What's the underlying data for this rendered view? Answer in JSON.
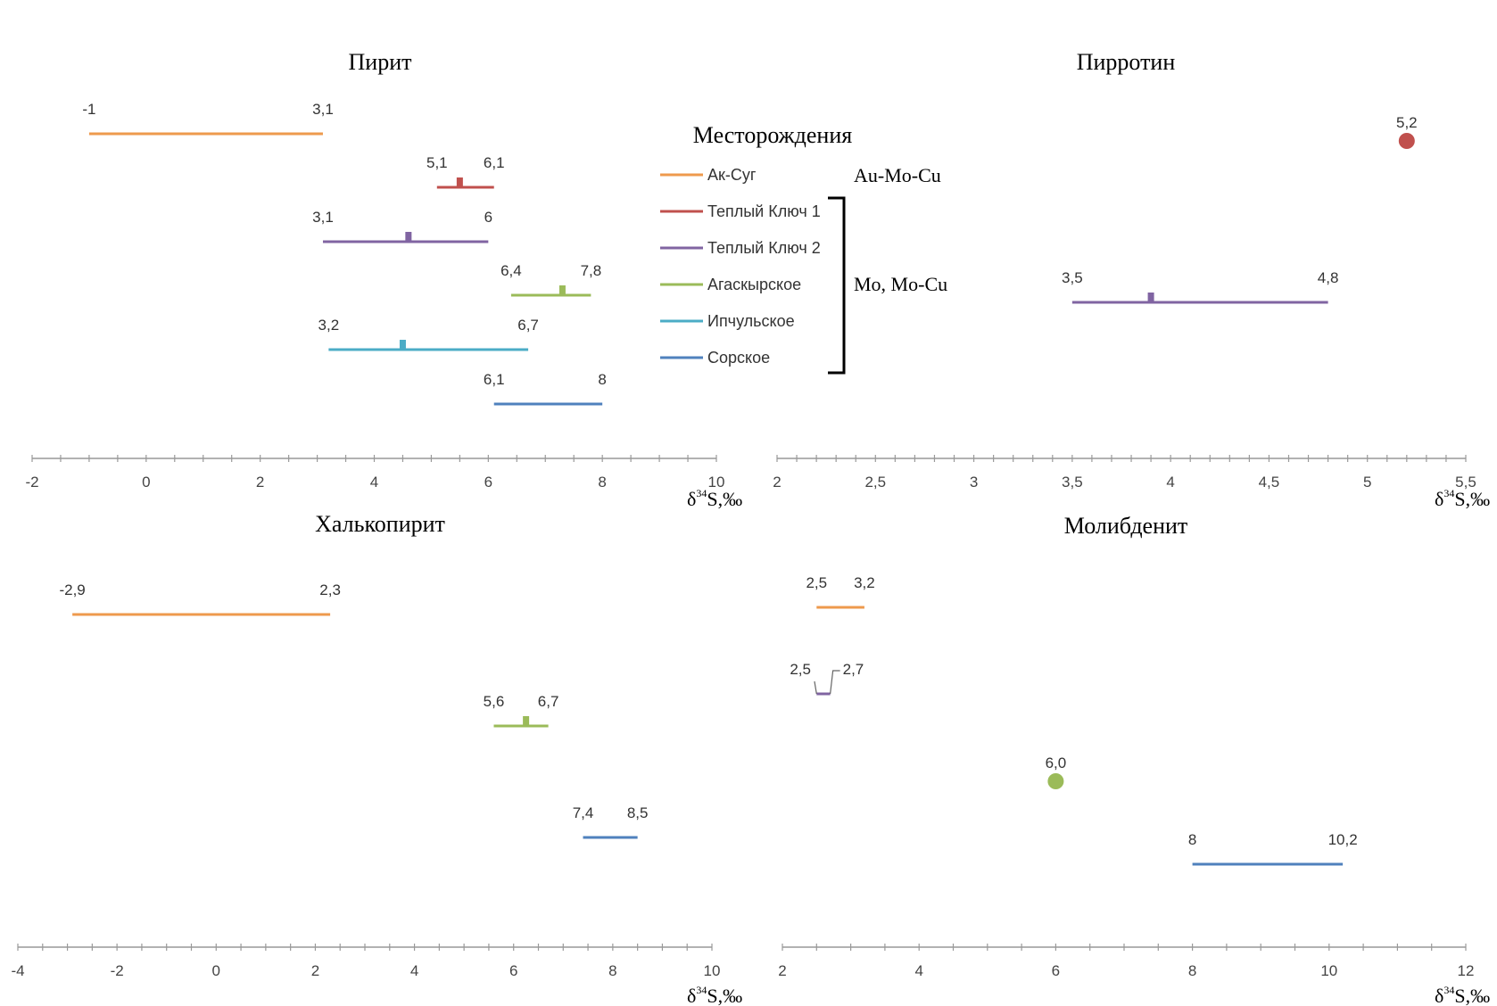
{
  "colors": {
    "ak_sug": "#ee9a4d",
    "teply1": "#c0504d",
    "teply2": "#8064a2",
    "agask": "#9bbb59",
    "ipchul": "#4bacc6",
    "sorsk": "#4f81bd",
    "axis": "#999999"
  },
  "legend": {
    "title": "Месторождения",
    "items": [
      {
        "label": "Ак-Суг",
        "color": "#ee9a4d"
      },
      {
        "label": "Теплый Ключ 1",
        "color": "#c0504d"
      },
      {
        "label": "Теплый Ключ 2",
        "color": "#8064a2"
      },
      {
        "label": "Агаскырское",
        "color": "#9bbb59"
      },
      {
        "label": "Ипчульское",
        "color": "#4bacc6"
      },
      {
        "label": "Сорское",
        "color": "#4f81bd"
      }
    ],
    "group1": "Au-Mo-Cu",
    "group2": "Mo, Mo-Cu"
  },
  "chart_data": [
    {
      "type": "range",
      "title": "Пирит",
      "xlabel": "δ34S,‰",
      "xlabel_prefix": "δ",
      "xlabel_sup": "34",
      "xlabel_suffix": "S,‰",
      "xlim": [
        -2,
        10
      ],
      "ticks": [
        "-2",
        "0",
        "2",
        "4",
        "6",
        "8",
        "10"
      ],
      "tick_values": [
        -2,
        0,
        2,
        4,
        6,
        8,
        10
      ],
      "minor_step": 0.5,
      "series": [
        {
          "name": "Ак-Суг",
          "color": "#ee9a4d",
          "min": -1,
          "max": 3.1,
          "min_label": "-1",
          "max_label": "3,1"
        },
        {
          "name": "Теплый Ключ 1",
          "color": "#c0504d",
          "min": 5.1,
          "max": 6.1,
          "mark": 5.5,
          "min_label": "5,1",
          "max_label": "6,1"
        },
        {
          "name": "Теплый Ключ 2",
          "color": "#8064a2",
          "min": 3.1,
          "max": 6,
          "mark": 4.6,
          "min_label": "3,1",
          "max_label": "6"
        },
        {
          "name": "Агаскырское",
          "color": "#9bbb59",
          "min": 6.4,
          "max": 7.8,
          "mark": 7.3,
          "min_label": "6,4",
          "max_label": "7,8"
        },
        {
          "name": "Ипчульское",
          "color": "#4bacc6",
          "min": 3.2,
          "max": 6.7,
          "mark": 4.5,
          "min_label": "3,2",
          "max_label": "6,7"
        },
        {
          "name": "Сорское",
          "color": "#4f81bd",
          "min": 6.1,
          "max": 8,
          "min_label": "6,1",
          "max_label": "8"
        }
      ]
    },
    {
      "type": "range",
      "title": "Пирротин",
      "xlabel": "δ34S,‰",
      "xlabel_prefix": "δ",
      "xlabel_sup": "34",
      "xlabel_suffix": "S,‰",
      "xlim": [
        2,
        5.5
      ],
      "ticks": [
        "2",
        "2,5",
        "3",
        "3,5",
        "4",
        "4,5",
        "5",
        "5,5"
      ],
      "tick_values": [
        2,
        2.5,
        3,
        3.5,
        4,
        4.5,
        5,
        5.5
      ],
      "minor_step": 0.1,
      "series": [
        {
          "name": "Теплый Ключ 1",
          "color": "#c0504d",
          "point": 5.2,
          "point_label": "5,2"
        },
        {
          "name": "Теплый Ключ 2",
          "color": "#8064a2",
          "min": 3.5,
          "max": 4.8,
          "mark": 3.9,
          "min_label": "3,5",
          "max_label": "4,8"
        }
      ]
    },
    {
      "type": "range",
      "title": "Халькопирит",
      "xlabel": "δ34S,‰",
      "xlabel_prefix": "δ",
      "xlabel_sup": "34",
      "xlabel_suffix": "S,‰",
      "xlim": [
        -4,
        10
      ],
      "ticks": [
        "-4",
        "-2",
        "0",
        "2",
        "4",
        "6",
        "8",
        "10"
      ],
      "tick_values": [
        -4,
        -2,
        0,
        2,
        4,
        6,
        8,
        10
      ],
      "minor_step": 0.5,
      "series": [
        {
          "name": "Ак-Суг",
          "color": "#ee9a4d",
          "min": -2.9,
          "max": 2.3,
          "min_label": "-2,9",
          "max_label": "2,3"
        },
        {
          "name": "Агаскырское",
          "color": "#9bbb59",
          "min": 5.6,
          "max": 6.7,
          "mark": 6.25,
          "min_label": "5,6",
          "max_label": "6,7"
        },
        {
          "name": "Сорское",
          "color": "#4f81bd",
          "min": 7.4,
          "max": 8.5,
          "min_label": "7,4",
          "max_label": "8,5"
        }
      ]
    },
    {
      "type": "range",
      "title": "Молибденит",
      "xlabel": "δ34S,‰",
      "xlabel_prefix": "δ",
      "xlabel_sup": "34",
      "xlabel_suffix": "S,‰",
      "xlim": [
        2,
        12
      ],
      "ticks": [
        "2",
        "4",
        "6",
        "8",
        "10",
        "12"
      ],
      "tick_values": [
        2,
        4,
        6,
        8,
        10,
        12
      ],
      "minor_step": 0.5,
      "series": [
        {
          "name": "Ак-Суг",
          "color": "#ee9a4d",
          "min": 2.5,
          "max": 3.2,
          "min_label": "2,5",
          "max_label": "3,2"
        },
        {
          "name": "Теплый Ключ 2",
          "color": "#8064a2",
          "min": 2.5,
          "max": 2.7,
          "min_label": "2,5",
          "max_label": "2,7"
        },
        {
          "name": "Агаскырское",
          "color": "#9bbb59",
          "point": 6.0,
          "point_label": "6,0"
        },
        {
          "name": "Сорское",
          "color": "#4f81bd",
          "min": 8,
          "max": 10.2,
          "min_label": "8",
          "max_label": "10,2"
        }
      ]
    }
  ]
}
